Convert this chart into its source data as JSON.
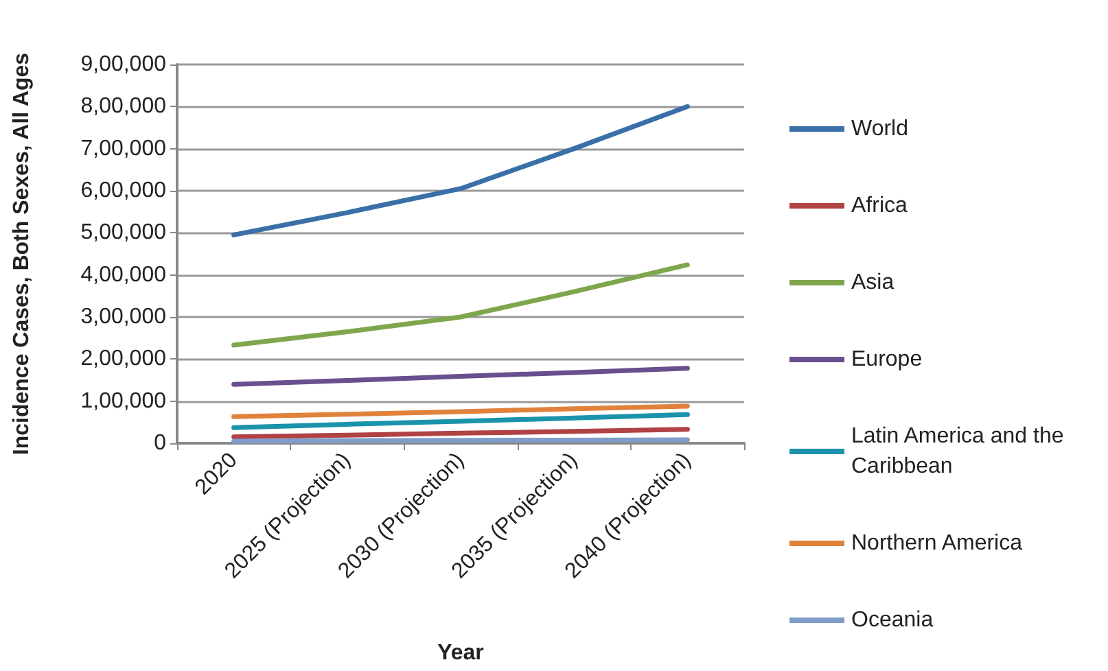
{
  "chart_data": {
    "type": "line",
    "xlabel": "Year",
    "ylabel": "Incidence Cases, Both Sexes, All Ages",
    "categories": [
      "2020",
      "2025 (Projection)",
      "2030 (Projection)",
      "2035 (Projection)",
      "2040 (Projection)"
    ],
    "series": [
      {
        "name": "World",
        "color": "#3a6fa8",
        "values": [
          495000,
          548000,
          605000,
          700000,
          800000
        ]
      },
      {
        "name": "Africa",
        "color": "#b04244",
        "values": [
          15000,
          19000,
          24000,
          28000,
          33000
        ]
      },
      {
        "name": "Asia",
        "color": "#7fa64c",
        "values": [
          233000,
          265000,
          300000,
          360000,
          424000
        ]
      },
      {
        "name": "Europe",
        "color": "#6a4f8e",
        "values": [
          140000,
          149000,
          159000,
          168000,
          178000
        ]
      },
      {
        "name": "Latin America and the Caribbean",
        "color": "#1a93ab",
        "values": [
          37000,
          45000,
          52000,
          60000,
          68000
        ]
      },
      {
        "name": "Northern America",
        "color": "#e0823a",
        "values": [
          63000,
          69000,
          75000,
          82000,
          88000
        ]
      },
      {
        "name": "Oceania",
        "color": "#7f9dc8",
        "values": [
          5000,
          6000,
          7000,
          7500,
          8000
        ]
      }
    ],
    "ylim": [
      0,
      900000
    ],
    "yticks": [
      0,
      {
        "value": 100000,
        "label": "1,00,000"
      },
      {
        "value": 200000,
        "label": "2,00,000"
      },
      {
        "value": 300000,
        "label": "3,00,000"
      },
      {
        "value": 400000,
        "label": "4,00,000"
      },
      {
        "value": 500000,
        "label": "5,00,000"
      },
      {
        "value": 600000,
        "label": "6,00,000"
      },
      {
        "value": 700000,
        "label": "7,00,000"
      },
      {
        "value": 800000,
        "label": "8,00,000"
      },
      {
        "value": 900000,
        "label": "9,00,000"
      }
    ],
    "grid": "y",
    "legend": "right",
    "marker": "none",
    "line_style": "solid"
  }
}
